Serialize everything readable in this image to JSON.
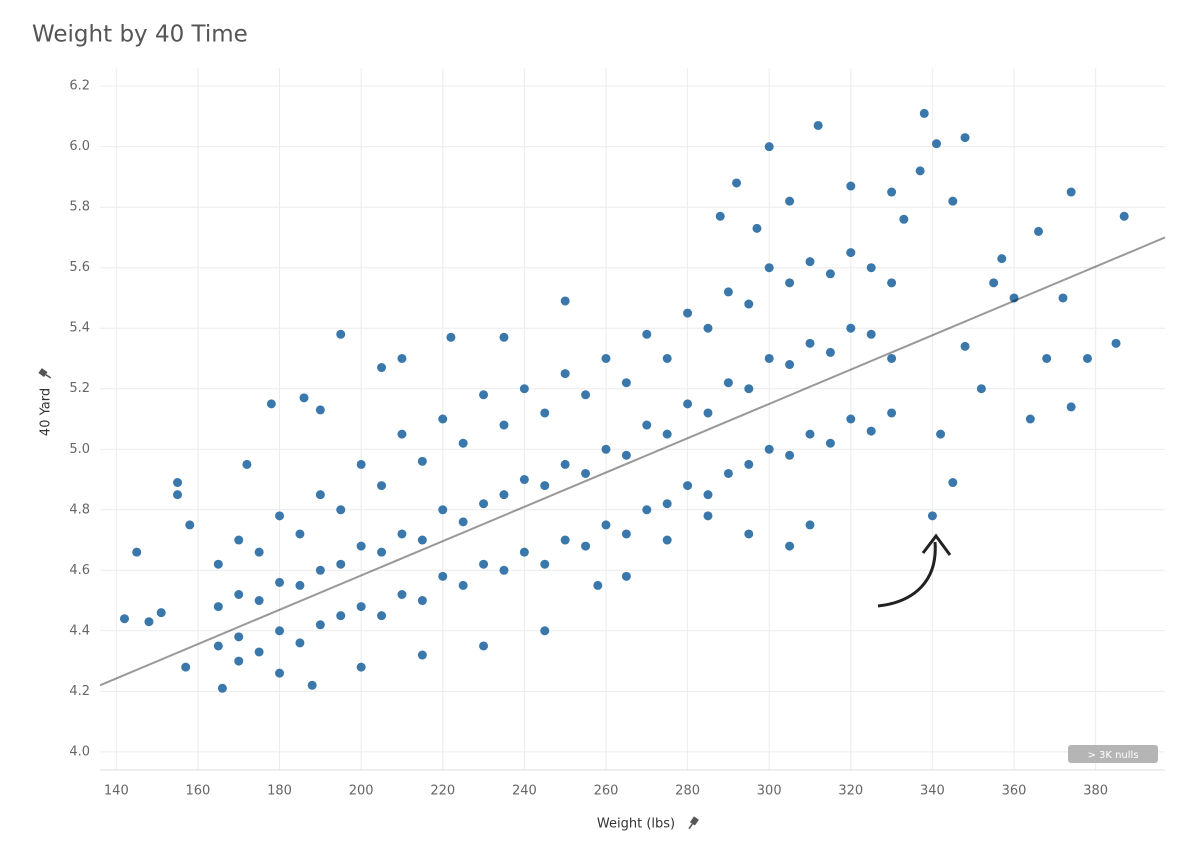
{
  "chart_data": {
    "type": "scatter",
    "title": "Weight by 40 Time",
    "x_label": "Weight (lbs)",
    "y_label": "40 Yard",
    "badge": "> 3K nulls",
    "color": "#3a78ab",
    "grid": true,
    "xlim": [
      136,
      397
    ],
    "ylim": [
      3.94,
      6.26
    ],
    "xticks": [
      140,
      160,
      180,
      200,
      220,
      240,
      260,
      280,
      300,
      320,
      340,
      360,
      380
    ],
    "yticks": [
      {
        "value": 4,
        "label": "4.0"
      },
      4.2,
      4.4,
      4.6,
      4.8,
      {
        "value": 5,
        "label": "5.0"
      },
      5.2,
      5.4,
      5.6,
      5.8,
      {
        "value": 6,
        "label": "6.0"
      },
      6.2
    ],
    "trend_line": {
      "color": "#999999",
      "x": [
        136,
        397
      ],
      "y": [
        4.22,
        5.7
      ]
    },
    "x": [
      145,
      142,
      148,
      151,
      155,
      155,
      157,
      158,
      166,
      172,
      178,
      186,
      190,
      195,
      205,
      210,
      222,
      235,
      250,
      300,
      292,
      312,
      338,
      341,
      348,
      320,
      330,
      337,
      345,
      333,
      305,
      288,
      297,
      357,
      366,
      374,
      387,
      372,
      378,
      368,
      374,
      364,
      385,
      360,
      340,
      345,
      342,
      352,
      348,
      355,
      310,
      305,
      295,
      285,
      275,
      265,
      258,
      245,
      230,
      215,
      200,
      188,
      180,
      170,
      165,
      165,
      165,
      170,
      170,
      170,
      175,
      175,
      175,
      180,
      180,
      180,
      185,
      185,
      185,
      190,
      190,
      190,
      195,
      195,
      195,
      200,
      200,
      200,
      205,
      205,
      205,
      210,
      210,
      210,
      215,
      215,
      215,
      220,
      220,
      220,
      225,
      225,
      225,
      230,
      230,
      230,
      235,
      235,
      235,
      240,
      240,
      240,
      245,
      245,
      245,
      250,
      250,
      250,
      255,
      255,
      255,
      260,
      260,
      260,
      265,
      265,
      265,
      270,
      270,
      270,
      275,
      275,
      275,
      280,
      280,
      280,
      285,
      285,
      285,
      290,
      290,
      290,
      295,
      295,
      295,
      300,
      300,
      300,
      305,
      305,
      305,
      310,
      310,
      310,
      315,
      315,
      315,
      320,
      320,
      320,
      325,
      325,
      325,
      330,
      330,
      330
    ],
    "values": [
      4.66,
      4.44,
      4.43,
      4.46,
      4.89,
      4.85,
      4.28,
      4.75,
      4.21,
      4.95,
      5.15,
      5.17,
      5.13,
      5.38,
      5.27,
      5.3,
      5.37,
      5.37,
      5.49,
      6.0,
      5.88,
      6.07,
      6.11,
      6.01,
      6.03,
      5.87,
      5.85,
      5.92,
      5.82,
      5.76,
      5.82,
      5.77,
      5.73,
      5.63,
      5.72,
      5.85,
      5.77,
      5.5,
      5.3,
      5.3,
      5.14,
      5.1,
      5.35,
      5.5,
      4.78,
      4.89,
      5.05,
      5.2,
      5.34,
      5.55,
      4.75,
      4.68,
      4.72,
      4.78,
      4.7,
      4.58,
      4.55,
      4.4,
      4.35,
      4.32,
      4.28,
      4.22,
      4.26,
      4.3,
      4.62,
      4.48,
      4.35,
      4.7,
      4.52,
      4.38,
      4.66,
      4.5,
      4.33,
      4.78,
      4.56,
      4.4,
      4.72,
      4.55,
      4.36,
      4.85,
      4.6,
      4.42,
      4.8,
      4.62,
      4.45,
      4.95,
      4.68,
      4.48,
      4.88,
      4.66,
      4.45,
      5.05,
      4.72,
      4.52,
      4.96,
      4.7,
      4.5,
      5.1,
      4.8,
      4.58,
      5.02,
      4.76,
      4.55,
      5.18,
      4.82,
      4.62,
      5.08,
      4.85,
      4.6,
      5.2,
      4.9,
      4.66,
      5.12,
      4.88,
      4.62,
      5.25,
      4.95,
      4.7,
      5.18,
      4.92,
      4.68,
      5.3,
      5.0,
      4.75,
      5.22,
      4.98,
      4.72,
      5.38,
      5.08,
      4.8,
      5.3,
      5.05,
      4.82,
      5.45,
      5.15,
      4.88,
      5.4,
      5.12,
      4.85,
      5.52,
      5.22,
      4.92,
      5.48,
      5.2,
      4.95,
      5.6,
      5.3,
      5.0,
      5.55,
      5.28,
      4.98,
      5.62,
      5.35,
      5.05,
      5.58,
      5.32,
      5.02,
      5.65,
      5.4,
      5.1,
      5.6,
      5.38,
      5.06,
      5.55,
      5.3,
      5.12
    ]
  }
}
